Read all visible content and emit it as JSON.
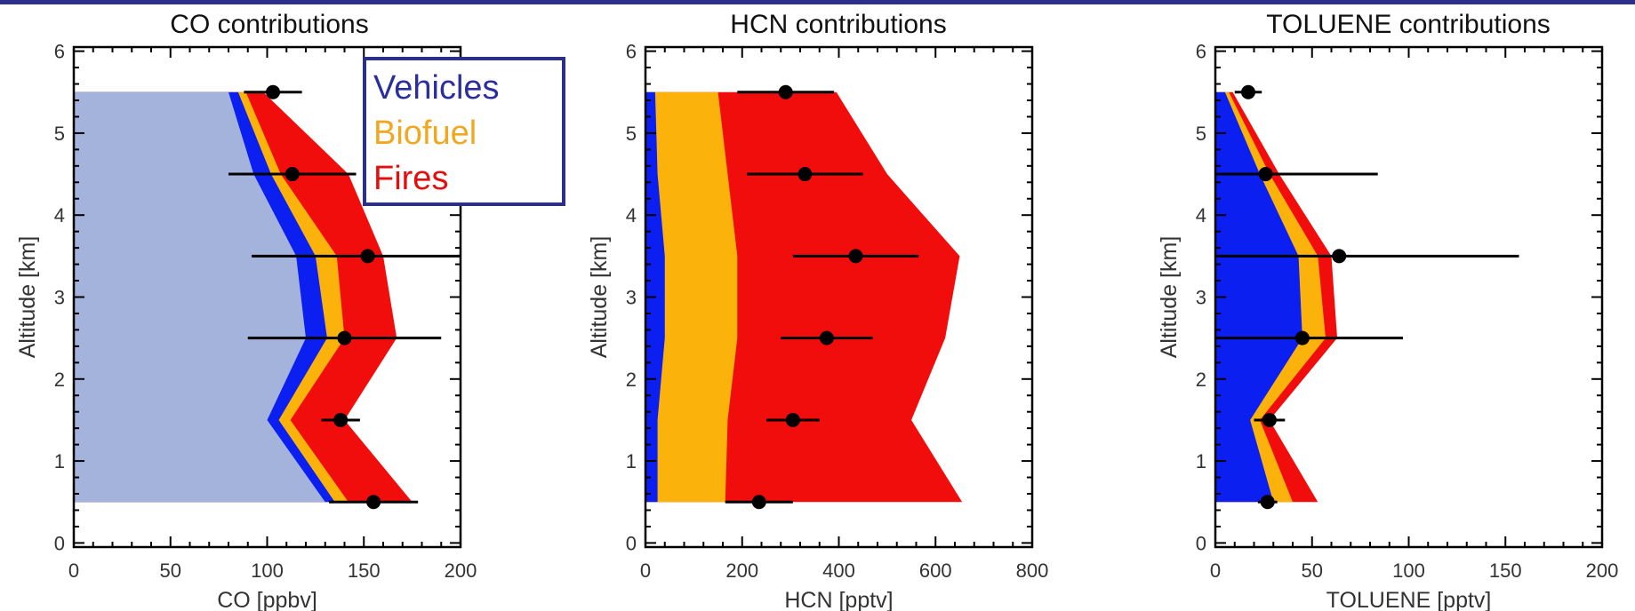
{
  "figure": {
    "colors": {
      "background": "#a4b3dc",
      "vehicles": "#0a1ff0",
      "biofuel": "#fbb30b",
      "fires": "#f20d0d",
      "legend_border": "#2b2f8a",
      "top_bar": "#2b2f8a"
    }
  },
  "legend": {
    "items": [
      {
        "label": "Vehicles",
        "color": "#2b2f9e"
      },
      {
        "label": "Biofuel",
        "color": "#f0a821"
      },
      {
        "label": "Fires",
        "color": "#e60d0d"
      }
    ]
  },
  "chart_data": [
    {
      "type": "area",
      "title": "CO contributions",
      "xlabel": "CO [ppbv]",
      "ylabel": "Altitude [km]",
      "xlim": [
        0,
        200
      ],
      "ylim": [
        -0.05,
        6.05
      ],
      "xticks": [
        "0",
        "50",
        "100",
        "150",
        "200"
      ],
      "yticks": [
        "0",
        "1",
        "2",
        "3",
        "4",
        "5",
        "6"
      ],
      "altitude": [
        0.5,
        1.5,
        2.5,
        3.5,
        4.5,
        5.5
      ],
      "stacked_series": [
        {
          "name": "Background",
          "color": "#a4b3dc",
          "cumulative": [
            130,
            100,
            120,
            115,
            93,
            80
          ]
        },
        {
          "name": "Vehicles",
          "color": "#0a1ff0",
          "cumulative": [
            135,
            106,
            131,
            125,
            102,
            85
          ]
        },
        {
          "name": "Biofuel",
          "color": "#fbb30b",
          "cumulative": [
            142,
            112,
            140,
            136,
            107,
            89
          ]
        },
        {
          "name": "Fires",
          "color": "#f20d0d",
          "cumulative": [
            175,
            140,
            167,
            160,
            142,
            98
          ]
        }
      ],
      "observations": [
        {
          "alt": 0.5,
          "mean": 155,
          "err": 23
        },
        {
          "alt": 1.5,
          "mean": 138,
          "err": 10
        },
        {
          "alt": 2.5,
          "mean": 140,
          "err": 50
        },
        {
          "alt": 3.5,
          "mean": 152,
          "err": 60
        },
        {
          "alt": 4.5,
          "mean": 113,
          "err": 33
        },
        {
          "alt": 5.5,
          "mean": 103,
          "err": 15
        }
      ],
      "legend_placement": "top-right"
    },
    {
      "type": "area",
      "title": "HCN contributions",
      "xlabel": "HCN [pptv]",
      "ylabel": "Altitude [km]",
      "xlim": [
        0,
        800
      ],
      "ylim": [
        -0.05,
        6.05
      ],
      "xticks": [
        "0",
        "200",
        "400",
        "600",
        "800"
      ],
      "yticks": [
        "0",
        "1",
        "2",
        "3",
        "4",
        "5",
        "6"
      ],
      "altitude": [
        0.5,
        1.5,
        2.5,
        3.5,
        4.5,
        5.5
      ],
      "stacked_series": [
        {
          "name": "Background",
          "color": "#a4b3dc",
          "cumulative": [
            0,
            0,
            0,
            0,
            0,
            0
          ]
        },
        {
          "name": "Vehicles",
          "color": "#0a1ff0",
          "cumulative": [
            25,
            25,
            40,
            40,
            25,
            20
          ]
        },
        {
          "name": "Biofuel",
          "color": "#fbb30b",
          "cumulative": [
            165,
            170,
            190,
            190,
            170,
            150
          ]
        },
        {
          "name": "Fires",
          "color": "#f20d0d",
          "cumulative": [
            655,
            550,
            620,
            650,
            500,
            395
          ]
        }
      ],
      "observations": [
        {
          "alt": 0.5,
          "mean": 235,
          "err": 70
        },
        {
          "alt": 1.5,
          "mean": 305,
          "err": 55
        },
        {
          "alt": 2.5,
          "mean": 375,
          "err": 95
        },
        {
          "alt": 3.5,
          "mean": 435,
          "err": 130
        },
        {
          "alt": 4.5,
          "mean": 330,
          "err": 120
        },
        {
          "alt": 5.5,
          "mean": 290,
          "err": 100
        }
      ]
    },
    {
      "type": "area",
      "title": "TOLUENE contributions",
      "xlabel": "TOLUENE [pptv]",
      "ylabel": "Altitude [km]",
      "xlim": [
        0,
        200
      ],
      "ylim": [
        -0.05,
        6.05
      ],
      "xticks": [
        "0",
        "50",
        "100",
        "150",
        "200"
      ],
      "yticks": [
        "0",
        "1",
        "2",
        "3",
        "4",
        "5",
        "6"
      ],
      "altitude": [
        0.5,
        1.5,
        2.5,
        3.5,
        4.5,
        5.5
      ],
      "stacked_series": [
        {
          "name": "Background",
          "color": "#a4b3dc",
          "cumulative": [
            0,
            0,
            0,
            0,
            0,
            0
          ]
        },
        {
          "name": "Vehicles",
          "color": "#0a1ff0",
          "cumulative": [
            30,
            18,
            45,
            43,
            23,
            5
          ]
        },
        {
          "name": "Biofuel",
          "color": "#fbb30b",
          "cumulative": [
            40,
            23,
            57,
            53,
            28,
            7
          ]
        },
        {
          "name": "Fires",
          "color": "#f20d0d",
          "cumulative": [
            53,
            28,
            63,
            60,
            33,
            9
          ]
        }
      ],
      "observations": [
        {
          "alt": 0.5,
          "mean": 27,
          "err": 5
        },
        {
          "alt": 1.5,
          "mean": 28,
          "err": 8
        },
        {
          "alt": 2.5,
          "mean": 45,
          "err": 52
        },
        {
          "alt": 3.5,
          "mean": 64,
          "err": 93
        },
        {
          "alt": 4.5,
          "mean": 26,
          "err": 58
        },
        {
          "alt": 5.5,
          "mean": 17,
          "err": 7
        }
      ]
    }
  ]
}
